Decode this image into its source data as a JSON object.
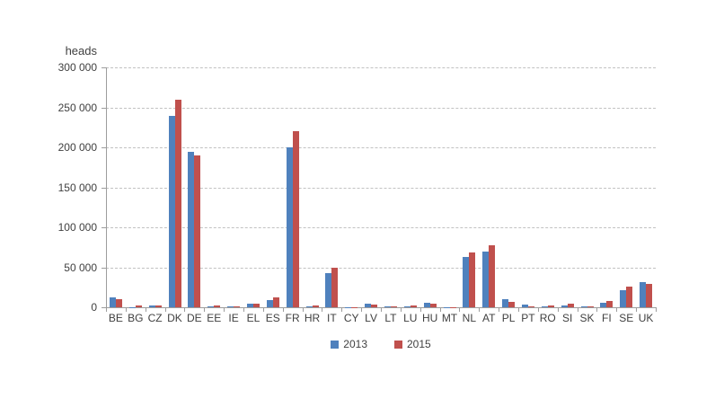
{
  "page": {
    "background": "#ffffff"
  },
  "chart": {
    "title": "heads"
  },
  "chart_data": {
    "type": "bar",
    "title": "heads",
    "ylabel": "heads",
    "xlabel": "",
    "categories": [
      "BE",
      "BG",
      "CZ",
      "DK",
      "DE",
      "EE",
      "IE",
      "EL",
      "ES",
      "FR",
      "HR",
      "IT",
      "CY",
      "LV",
      "LT",
      "LU",
      "HU",
      "MT",
      "NL",
      "AT",
      "PL",
      "PT",
      "RO",
      "SI",
      "SK",
      "FI",
      "SE",
      "UK"
    ],
    "series": [
      {
        "name": "2013",
        "color": "#4f81bd",
        "values": [
          12000,
          300,
          2000,
          239000,
          194000,
          1500,
          1200,
          5000,
          9000,
          200000,
          1500,
          43000,
          200,
          5000,
          1500,
          1200,
          5500,
          100,
          63000,
          70000,
          10000,
          3500,
          1000,
          2500,
          800,
          6000,
          21000,
          31000
        ]
      },
      {
        "name": "2015",
        "color": "#c0504d",
        "values": [
          10500,
          2000,
          2500,
          260000,
          190000,
          1800,
          1500,
          4500,
          12000,
          220000,
          1800,
          49000,
          200,
          3500,
          1500,
          2000,
          4800,
          100,
          68000,
          78000,
          7000,
          1500,
          2000,
          4000,
          1200,
          7500,
          26000,
          29000
        ]
      }
    ],
    "ylim": [
      0,
      300000
    ],
    "ytick_step": 50000,
    "ytick_labels": [
      "0",
      "50 000",
      "100 000",
      "150 000",
      "200 000",
      "250 000",
      "300 000"
    ],
    "grid": "horizontal-dashed",
    "legend_position": "bottom-center"
  }
}
